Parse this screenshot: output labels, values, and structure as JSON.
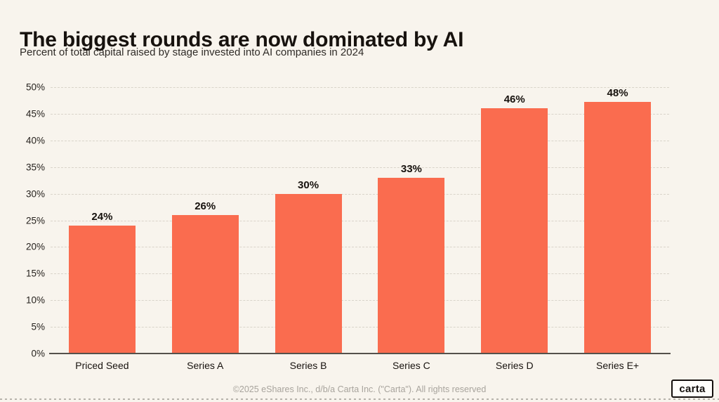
{
  "chart_data": {
    "type": "bar",
    "title": "The biggest rounds are now dominated by AI",
    "subtitle": "Percent of total capital raised by stage invested into AI companies in 2024",
    "categories": [
      "Priced Seed",
      "Series A",
      "Series B",
      "Series C",
      "Series D",
      "Series E+"
    ],
    "values": [
      24,
      26,
      30,
      33,
      46,
      48
    ],
    "value_labels": [
      "24%",
      "26%",
      "30%",
      "33%",
      "46%",
      "48%"
    ],
    "xlabel": "",
    "ylabel": "",
    "ylim": [
      0,
      50
    ],
    "ytick_step": 5,
    "ytick_labels": [
      "0%",
      "5%",
      "10%",
      "15%",
      "20%",
      "25%",
      "30%",
      "35%",
      "40%",
      "45%",
      "50%"
    ],
    "grid": "horizontal-dashed",
    "legend": "none"
  },
  "footer": {
    "copyright": "©2025 eShares Inc., d/b/a Carta Inc. (\"Carta\"). All rights reserved",
    "logo_text": "carta"
  },
  "colors": {
    "background": "#F8F4ED",
    "bar": "#FA6C4F",
    "title_text": "#17120E",
    "gridline": "#D9D4CA",
    "axis_line": "#55514C",
    "footer_text": "#A8A49D"
  }
}
